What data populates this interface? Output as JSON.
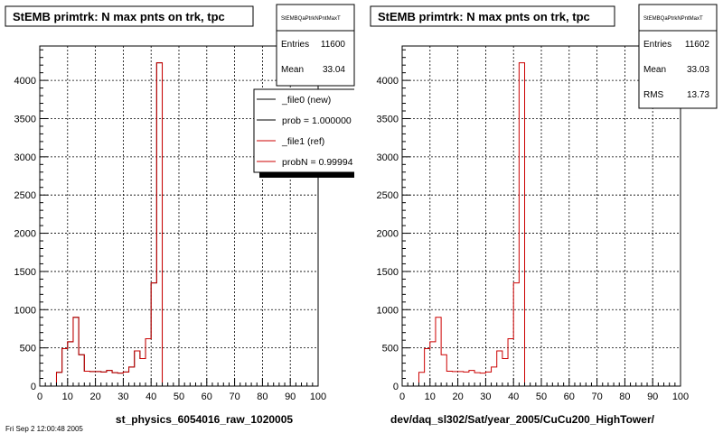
{
  "charts": [
    {
      "id": "left",
      "title": "StEMB primtrk: N max pnts on trk, tpc",
      "xlabel": "st_physics_6054016_raw_1020005",
      "stats": {
        "name": "StEMBQaPtrkNPntMaxT",
        "rows": [
          {
            "label": "Entries",
            "value": "11600"
          },
          {
            "label": "Mean",
            "value": "33.04"
          }
        ]
      },
      "legend": [
        {
          "label": "_file0 (new)",
          "color": "#000000"
        },
        {
          "label": "prob = 1.000000",
          "color": "#000000"
        },
        {
          "label": "_file1 (ref)",
          "color": "#cc0000"
        },
        {
          "label": "probN = 0.99994",
          "color": "#cc0000"
        }
      ]
    },
    {
      "id": "right",
      "title": "StEMB primtrk: N max pnts on trk, tpc",
      "xlabel": "dev/daq_sl302/Sat/year_2005/CuCu200_HighTower/",
      "stats": {
        "name": "StEMBQaPtrkNPntMaxT",
        "rows": [
          {
            "label": "Entries",
            "value": "11602"
          },
          {
            "label": "Mean",
            "value": "33.03"
          },
          {
            "label": "RMS",
            "value": "13.73"
          }
        ]
      },
      "legend": []
    }
  ],
  "footer_text": "Fri Sep 2 12:00:48 2005",
  "chart_data": {
    "type": "histogram",
    "title": "StEMB primtrk: N max pnts on trk, tpc",
    "bin_edges": [
      0,
      2,
      4,
      6,
      8,
      10,
      12,
      14,
      16,
      18,
      20,
      22,
      24,
      26,
      28,
      30,
      32,
      34,
      36,
      38,
      40,
      42,
      44,
      46,
      48,
      50,
      52,
      54,
      56,
      58,
      60,
      62,
      64,
      66,
      68,
      70,
      72,
      74,
      76,
      78,
      80,
      82,
      84,
      86,
      88,
      90,
      92,
      94,
      96,
      98,
      100
    ],
    "series": [
      {
        "name": "_file0 (new)",
        "color": "#000000",
        "values": [
          0,
          0,
          0,
          180,
          490,
          580,
          900,
          410,
          195,
          190,
          190,
          185,
          205,
          175,
          170,
          185,
          250,
          460,
          360,
          620,
          1350,
          4230,
          0,
          0,
          0,
          0,
          0,
          0,
          0,
          0,
          0,
          0,
          0,
          0,
          0,
          0,
          0,
          0,
          0,
          0,
          0,
          0,
          0,
          0,
          0,
          0,
          0,
          0,
          0,
          0
        ]
      },
      {
        "name": "_file1 (ref)",
        "color": "#cc0000",
        "values": [
          0,
          0,
          0,
          180,
          490,
          580,
          900,
          410,
          195,
          190,
          190,
          185,
          205,
          175,
          170,
          185,
          250,
          460,
          360,
          620,
          1350,
          4230,
          0,
          0,
          0,
          0,
          0,
          0,
          0,
          0,
          0,
          0,
          0,
          0,
          0,
          0,
          0,
          0,
          0,
          0,
          0,
          0,
          0,
          0,
          0,
          0,
          0,
          0,
          0,
          0
        ]
      }
    ],
    "xlim": [
      0,
      100
    ],
    "ylim": [
      0,
      4450
    ],
    "x_ticks": [
      0,
      10,
      20,
      30,
      40,
      50,
      60,
      70,
      80,
      90,
      100
    ],
    "y_ticks": [
      0,
      500,
      1000,
      1500,
      2000,
      2500,
      3000,
      3500,
      4000
    ],
    "grid": true
  }
}
